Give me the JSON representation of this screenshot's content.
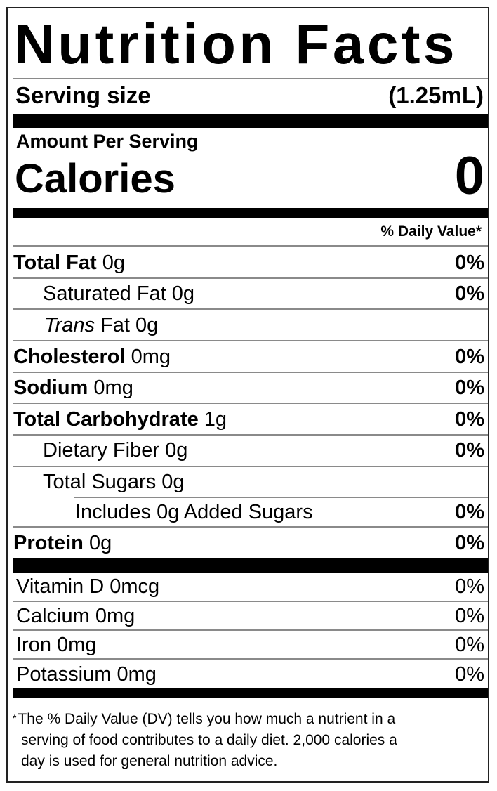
{
  "title": "Nutrition Facts",
  "serving": {
    "label": "Serving size",
    "value": "(1.25mL)"
  },
  "calories": {
    "amount_per_serving": "Amount Per Serving",
    "label": "Calories",
    "value": "0"
  },
  "daily_value_header": "% Daily Value*",
  "nutrients": [
    {
      "label": "Total Fat",
      "amount": "0g",
      "dv": "0%"
    },
    {
      "label": "Saturated Fat",
      "amount": "0g",
      "dv": "0%"
    },
    {
      "label": "Trans",
      "label_rest": "Fat",
      "amount": "0g",
      "dv": ""
    },
    {
      "label": "Cholesterol",
      "amount": "0mg",
      "dv": "0%"
    },
    {
      "label": "Sodium",
      "amount": "0mg",
      "dv": "0%"
    },
    {
      "label": "Total Carbohydrate",
      "amount": "1g",
      "dv": "0%"
    },
    {
      "label": "Dietary Fiber",
      "amount": "0g",
      "dv": "0%"
    },
    {
      "label": "Total Sugars",
      "amount": "0g",
      "dv": ""
    },
    {
      "label": "Includes 0g Added Sugars",
      "amount": "",
      "dv": "0%"
    },
    {
      "label": "Protein",
      "amount": "0g",
      "dv": "0%"
    }
  ],
  "vitamins": [
    {
      "label": "Vitamin D",
      "amount": "0mcg",
      "dv": "0%"
    },
    {
      "label": "Calcium",
      "amount": "0mg",
      "dv": "0%"
    },
    {
      "label": "Iron",
      "amount": "0mg",
      "dv": "0%"
    },
    {
      "label": "Potassium",
      "amount": "0mg",
      "dv": "0%"
    }
  ],
  "footnote": {
    "asterisk": "*",
    "line1": "The % Daily Value (DV) tells you how much a nutrient in a",
    "line2": "serving of food contributes to a daily diet. 2,000 calories a",
    "line3": "day is used for general nutrition advice."
  }
}
